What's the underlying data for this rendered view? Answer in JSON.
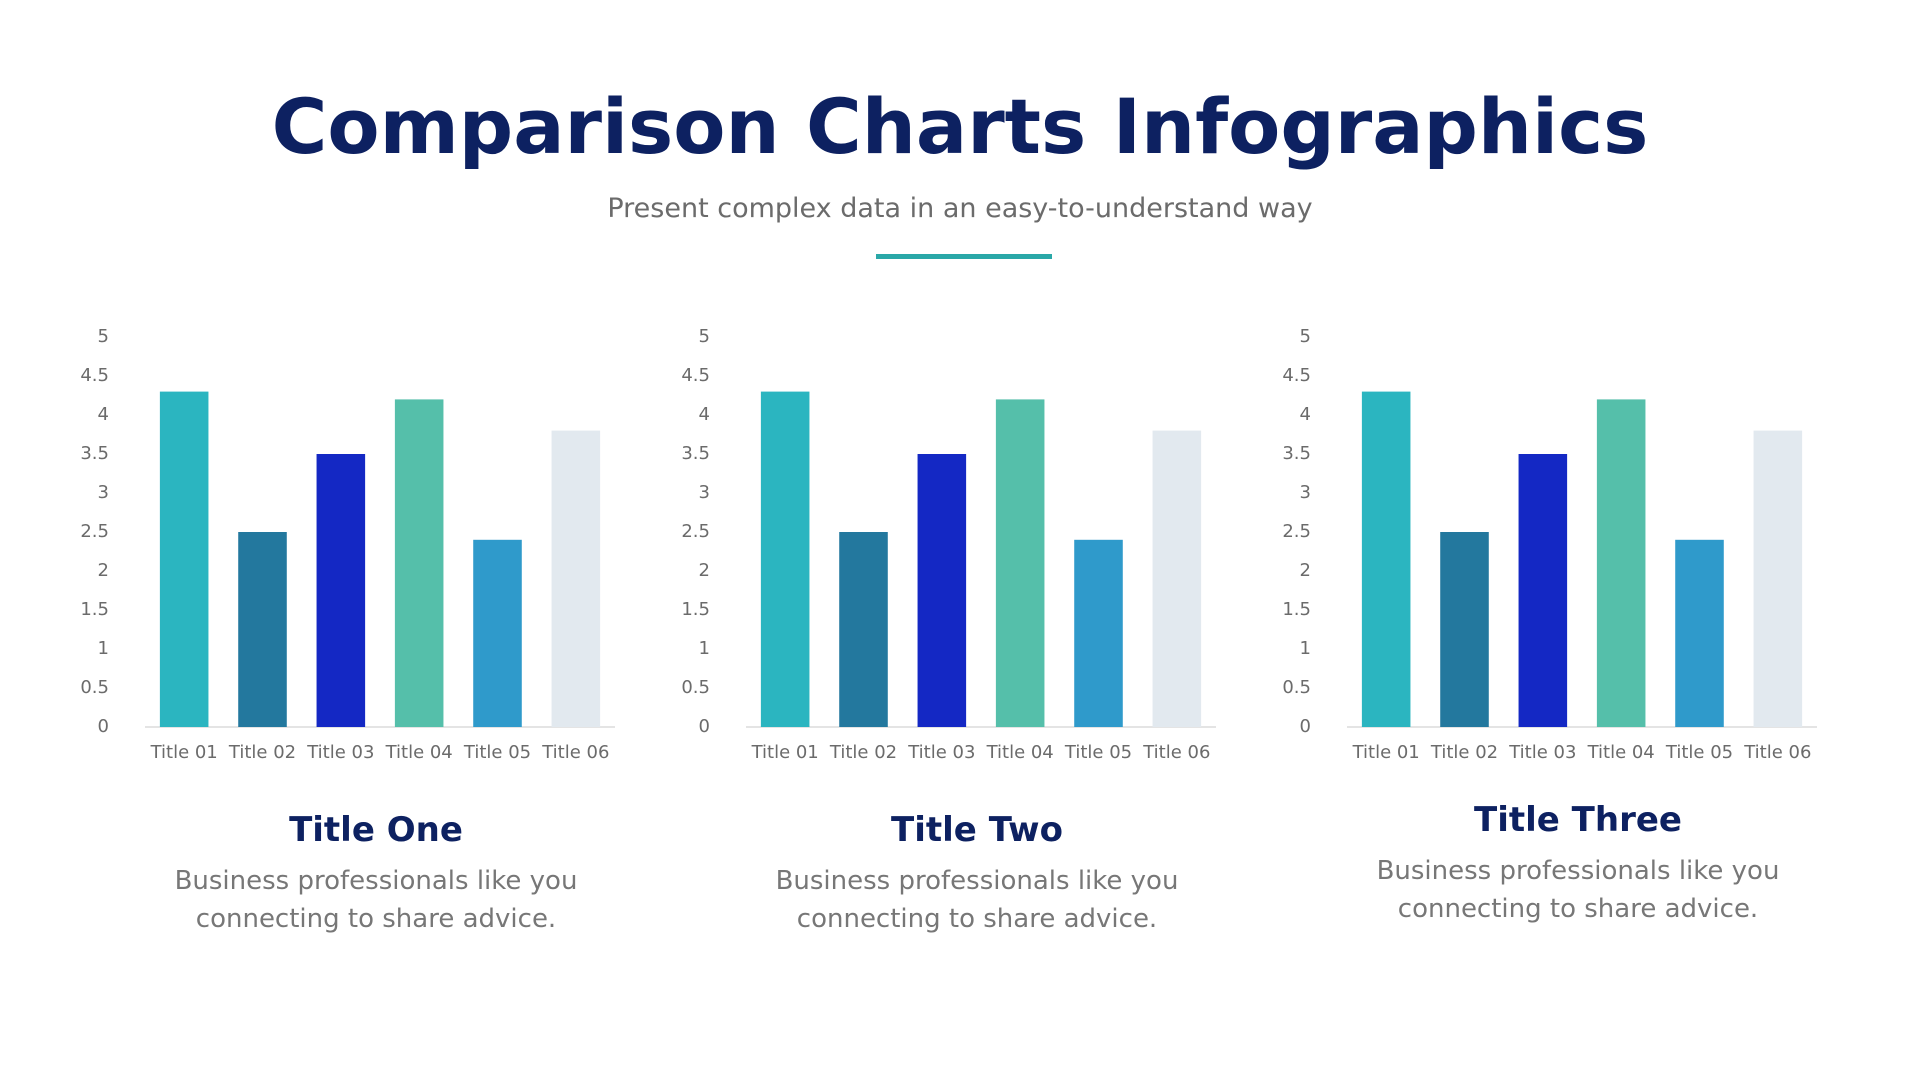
{
  "header": {
    "title": "Comparison Charts Infographics",
    "subtitle": "Present complex data in an easy-to-understand way"
  },
  "chart_data": [
    {
      "type": "bar",
      "title": "Title One",
      "caption": "Business professionals like you connecting to share advice.",
      "categories": [
        "Title 01",
        "Title 02",
        "Title 03",
        "Title 04",
        "Title 05",
        "Title 06"
      ],
      "values": [
        4.3,
        2.5,
        3.5,
        4.2,
        2.4,
        3.8
      ],
      "colors": [
        "#2bb5c0",
        "#23789e",
        "#1428c4",
        "#55bfaa",
        "#2f9acb",
        "#e2e9ef"
      ],
      "ylim": [
        0,
        5
      ],
      "yticks": [
        0,
        0.5,
        1,
        1.5,
        2,
        2.5,
        3,
        3.5,
        4,
        4.5,
        5
      ]
    },
    {
      "type": "bar",
      "title": "Title Two",
      "caption": "Business professionals like you connecting to share advice.",
      "categories": [
        "Title 01",
        "Title 02",
        "Title 03",
        "Title 04",
        "Title 05",
        "Title 06"
      ],
      "values": [
        4.3,
        2.5,
        3.5,
        4.2,
        2.4,
        3.8
      ],
      "colors": [
        "#2bb5c0",
        "#23789e",
        "#1428c4",
        "#55bfaa",
        "#2f9acb",
        "#e2e9ef"
      ],
      "ylim": [
        0,
        5
      ],
      "yticks": [
        0,
        0.5,
        1,
        1.5,
        2,
        2.5,
        3,
        3.5,
        4,
        4.5,
        5
      ]
    },
    {
      "type": "bar",
      "title": "Title Three",
      "caption": "Business professionals like you connecting to share advice.",
      "categories": [
        "Title 01",
        "Title 02",
        "Title 03",
        "Title 04",
        "Title 05",
        "Title 06"
      ],
      "values": [
        4.3,
        2.5,
        3.5,
        4.2,
        2.4,
        3.8
      ],
      "colors": [
        "#2bb5c0",
        "#23789e",
        "#1428c4",
        "#55bfaa",
        "#2f9acb",
        "#e2e9ef"
      ],
      "ylim": [
        0,
        5
      ],
      "yticks": [
        0,
        0.5,
        1,
        1.5,
        2,
        2.5,
        3,
        3.5,
        4,
        4.5,
        5
      ]
    }
  ]
}
